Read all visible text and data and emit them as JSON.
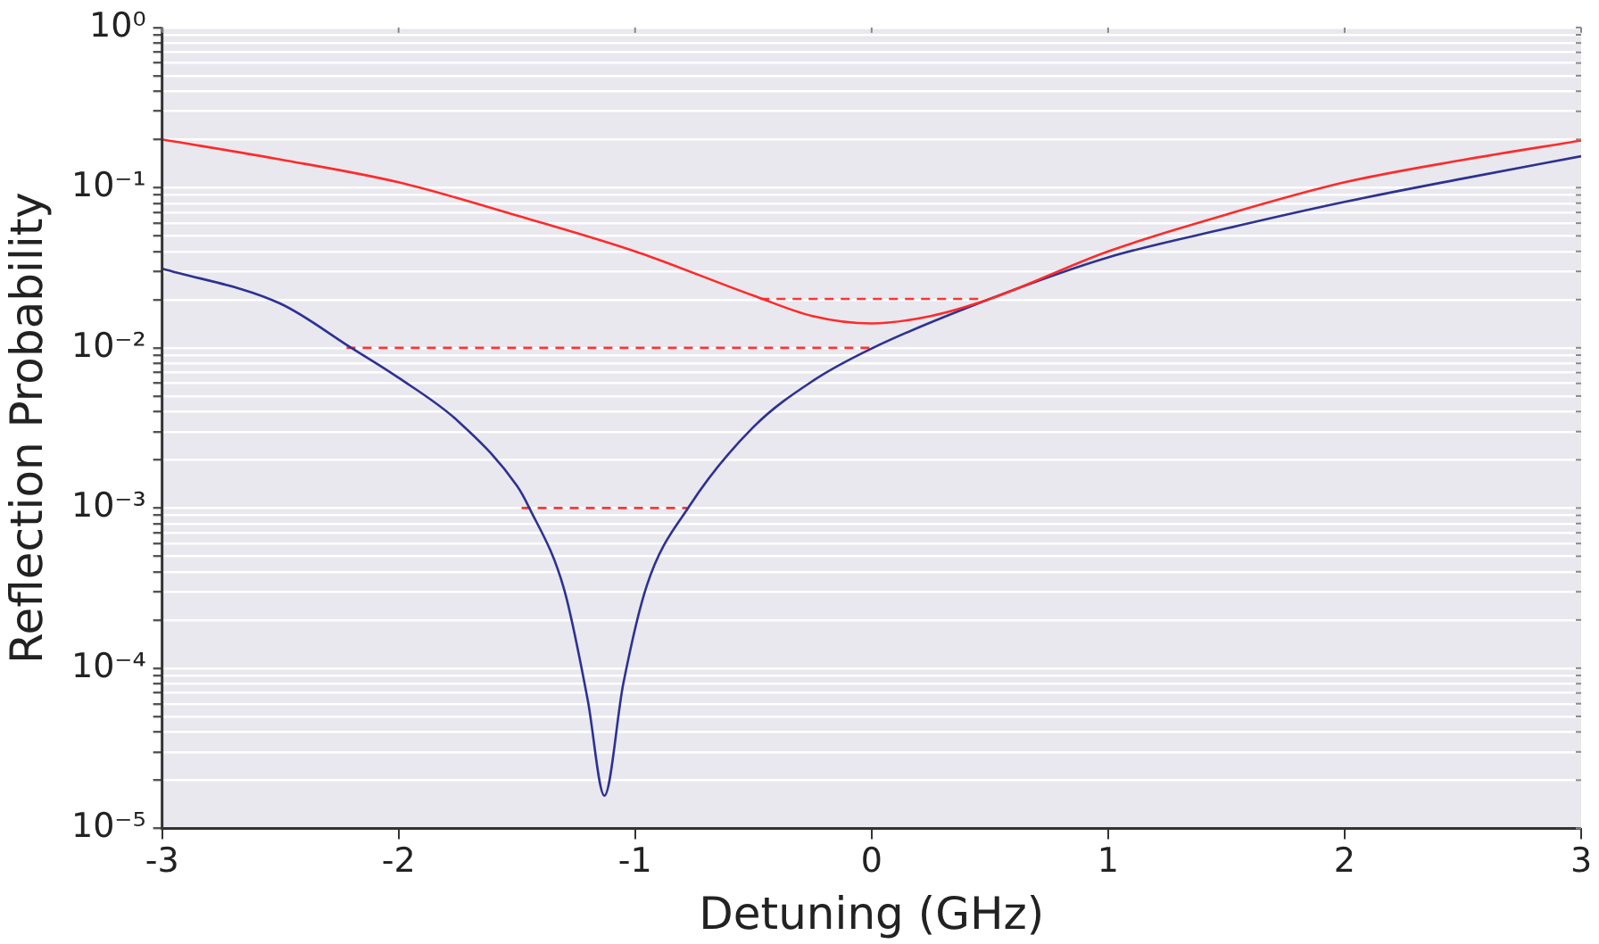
{
  "chart_data": {
    "type": "line",
    "xlabel": "Detuning (GHz)",
    "ylabel": "Reflection Probability",
    "log": "y",
    "grid": "y",
    "marker": "none",
    "xlim": [
      -3,
      3
    ],
    "xticks": [
      {
        "value": -3,
        "label": "-3"
      },
      {
        "value": -2,
        "label": "-2"
      },
      {
        "value": -1,
        "label": "-1"
      },
      0,
      1,
      2,
      3
    ],
    "ylim": [
      1e-05,
      1
    ],
    "yticks": [
      {
        "value": 1e-05,
        "label": "10⁻⁵"
      },
      {
        "value": 2e-05,
        "label": null
      },
      {
        "value": 3e-05,
        "label": null
      },
      {
        "value": 4e-05,
        "label": null
      },
      {
        "value": 5e-05,
        "label": null
      },
      {
        "value": 6e-05,
        "label": null
      },
      {
        "value": 7e-05,
        "label": null
      },
      {
        "value": 8e-05,
        "label": null
      },
      {
        "value": 9e-05,
        "label": null
      },
      {
        "value": 0.0001,
        "label": "10⁻⁴"
      },
      {
        "value": 0.0002,
        "label": null
      },
      {
        "value": 0.0003,
        "label": null
      },
      {
        "value": 0.0004,
        "label": null
      },
      {
        "value": 0.0005,
        "label": null
      },
      {
        "value": 0.0006,
        "label": null
      },
      {
        "value": 0.0007,
        "label": null
      },
      {
        "value": 0.0008,
        "label": null
      },
      {
        "value": 0.0009,
        "label": null
      },
      {
        "value": 0.001,
        "label": "10⁻³"
      },
      {
        "value": 0.002,
        "label": null
      },
      {
        "value": 0.003,
        "label": null
      },
      {
        "value": 0.004,
        "label": null
      },
      {
        "value": 0.005,
        "label": null
      },
      {
        "value": 0.006,
        "label": null
      },
      {
        "value": 0.007,
        "label": null
      },
      {
        "value": 0.008,
        "label": null
      },
      {
        "value": 0.009,
        "label": null
      },
      {
        "value": 0.01,
        "label": "10⁻²"
      },
      {
        "value": 0.02,
        "label": null
      },
      {
        "value": 0.03,
        "label": null
      },
      {
        "value": 0.04,
        "label": null
      },
      {
        "value": 0.05,
        "label": null
      },
      {
        "value": 0.06,
        "label": null
      },
      {
        "value": 0.07,
        "label": null
      },
      {
        "value": 0.08,
        "label": null
      },
      {
        "value": 0.09,
        "label": null
      },
      {
        "value": 0.1,
        "label": "10⁻¹"
      },
      {
        "value": 0.2,
        "label": null
      },
      {
        "value": 0.3,
        "label": null
      },
      {
        "value": 0.4,
        "label": null
      },
      {
        "value": 0.5,
        "label": null
      },
      {
        "value": 0.6,
        "label": null
      },
      {
        "value": 0.7,
        "label": null
      },
      {
        "value": 0.8,
        "label": null
      },
      {
        "value": 0.9,
        "label": null
      },
      {
        "value": 1,
        "label": "10⁰"
      }
    ],
    "series": [
      {
        "color": "#ff2a2a",
        "line_style": "solid",
        "x": [
          -3,
          -2.5,
          -2,
          -1.5,
          -1,
          -0.5,
          -0.25,
          0,
          0.25,
          0.5,
          1,
          1.5,
          2,
          2.5,
          3
        ],
        "values": [
          0.2,
          0.15,
          0.108,
          0.067,
          0.04,
          0.0212,
          0.0158,
          0.0142,
          0.0158,
          0.0202,
          0.04,
          0.068,
          0.108,
          0.149,
          0.197
        ]
      },
      {
        "color": "#2e3192",
        "line_style": "solid",
        "x": [
          -3,
          -2.5,
          -2.2,
          -2,
          -1.75,
          -1.5,
          -1.45,
          -1.3,
          -1.2,
          -1.13,
          -1.05,
          -0.95,
          -0.77,
          -0.5,
          -0.25,
          0,
          0.5,
          1,
          1.5,
          2,
          2.5,
          3
        ],
        "values": [
          0.0313,
          0.0189,
          0.01,
          0.0065,
          0.0035,
          0.00138,
          0.00102,
          0.00031,
          6.3e-05,
          1.6e-05,
          8e-05,
          0.00033,
          0.00103,
          0.0032,
          0.0062,
          0.0099,
          0.0202,
          0.0367,
          0.0556,
          0.0815,
          0.114,
          0.157
        ]
      },
      {
        "color": "#ff3333",
        "line_style": "dashed",
        "x": [
          -0.47,
          0.48
        ],
        "values": [
          0.0202,
          0.0202
        ]
      },
      {
        "color": "#ff3333",
        "line_style": "dashed",
        "x": [
          -2.22,
          0
        ],
        "values": [
          0.01,
          0.01
        ]
      },
      {
        "color": "#ff3333",
        "line_style": "dashed",
        "x": [
          -1.48,
          -0.78
        ],
        "values": [
          0.001,
          0.001
        ]
      }
    ]
  }
}
